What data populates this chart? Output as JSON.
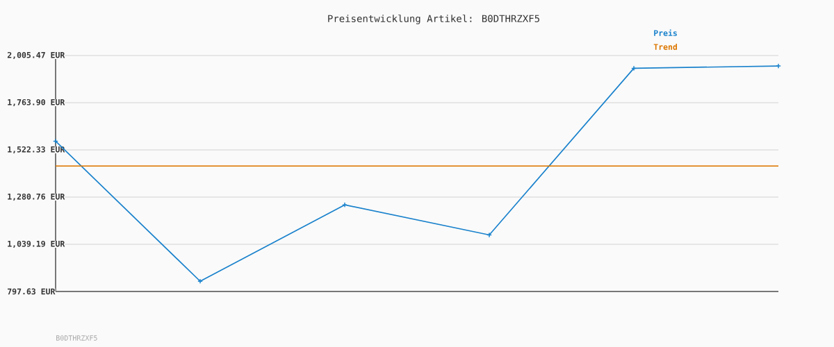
{
  "chart_data": {
    "type": "line",
    "title": "Preisentwicklung Artikel: B0DTHRZXF5",
    "categories": [
      null,
      null,
      null,
      null,
      null,
      null
    ],
    "series": [
      {
        "name": "Preis",
        "color": "#1a82cc",
        "values": [
          1567,
          850,
          1241,
          1087,
          1940,
          1952
        ]
      },
      {
        "name": "Trend",
        "color": "#dd7700",
        "values": [
          1440,
          1440,
          1440,
          1440,
          1440,
          1440
        ],
        "marker": "none"
      }
    ],
    "ylim": [
      797.63,
      2005.47
    ],
    "yticks": [
      {
        "value": 797.63,
        "label": "797.63 EUR"
      },
      {
        "value": 1039.19,
        "label": "1,039.19 EUR"
      },
      {
        "value": 1280.76,
        "label": "1,280.76 EUR"
      },
      {
        "value": 1522.33,
        "label": "1,522.33 EUR"
      },
      {
        "value": 1763.9,
        "label": "1,763.90 EUR"
      },
      {
        "value": 2005.47,
        "label": "2,005.47 EUR"
      }
    ],
    "grid": "y",
    "legend": "top right",
    "marker": "cross",
    "tick_labels": "y",
    "annotations": [
      "B0DTHRZXF5"
    ]
  }
}
